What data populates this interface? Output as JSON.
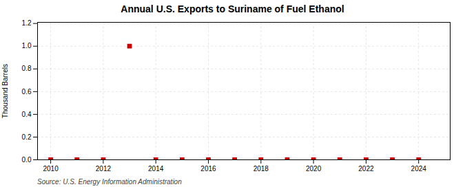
{
  "chart_data": {
    "type": "scatter",
    "title": "Annual U.S. Exports to Suriname of Fuel Ethanol",
    "ylabel": "Thousand Barrels",
    "source": "Source: U.S. Energy Information Administration",
    "x": [
      2010,
      2011,
      2012,
      2013,
      2014,
      2015,
      2016,
      2017,
      2018,
      2019,
      2020,
      2021,
      2022,
      2023,
      2024
    ],
    "values": [
      0,
      0,
      0,
      1.0,
      0,
      0,
      0,
      0,
      0,
      0,
      0,
      0,
      0,
      0,
      0
    ],
    "color": "#cc0000",
    "marker": "square",
    "xlim": [
      2009.5,
      2025.2
    ],
    "xticks": [
      2010,
      2012,
      2014,
      2016,
      2018,
      2020,
      2022,
      2024
    ],
    "ylim": [
      0.0,
      1.21
    ],
    "yticks": [
      {
        "value": 0.0,
        "label": "0.0"
      },
      0.2,
      0.4,
      0.6,
      0.8,
      {
        "value": 1.0,
        "label": "1.0"
      },
      1.2
    ],
    "grid": true
  }
}
